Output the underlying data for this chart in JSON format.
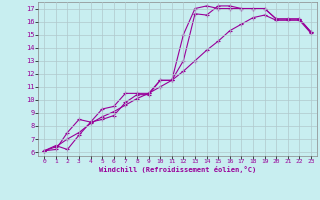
{
  "xlabel": "Windchill (Refroidissement éolien,°C)",
  "bg_color": "#c8eef0",
  "line_color": "#990099",
  "grid_color": "#b0c8cc",
  "xmin": 0,
  "xmax": 23,
  "ymin": 6,
  "ymax": 17,
  "curve1_x": [
    0,
    1,
    2,
    3,
    4,
    5,
    6,
    7,
    8,
    9,
    10,
    11,
    12,
    13,
    14,
    15,
    16,
    17,
    18,
    19,
    20,
    21,
    22,
    23
  ],
  "curve1_y": [
    6.1,
    6.5,
    6.2,
    7.3,
    8.3,
    8.5,
    8.8,
    9.8,
    10.4,
    10.4,
    11.5,
    11.5,
    13.0,
    16.6,
    16.5,
    17.2,
    17.2,
    17.0,
    17.0,
    17.0,
    16.2,
    16.2,
    16.2,
    15.2
  ],
  "curve2_x": [
    0,
    1,
    2,
    3,
    4,
    5,
    6,
    7,
    8,
    9,
    10,
    11,
    12,
    13,
    14,
    15,
    16,
    17,
    18,
    19,
    20,
    21,
    22,
    23
  ],
  "curve2_y": [
    6.1,
    6.2,
    7.5,
    8.5,
    8.3,
    9.3,
    9.5,
    10.5,
    10.5,
    10.5,
    11.5,
    11.5,
    15.0,
    17.0,
    17.2,
    17.0,
    17.0,
    17.0,
    17.0,
    17.0,
    16.2,
    16.2,
    16.2,
    15.2
  ],
  "curve3_x": [
    0,
    1,
    2,
    3,
    4,
    5,
    6,
    7,
    8,
    9,
    10,
    11,
    12,
    13,
    14,
    15,
    16,
    17,
    18,
    19,
    20,
    21,
    22,
    23
  ],
  "curve3_y": [
    6.1,
    6.4,
    7.0,
    7.5,
    8.2,
    8.7,
    9.1,
    9.6,
    10.1,
    10.5,
    11.0,
    11.5,
    12.2,
    13.0,
    13.8,
    14.5,
    15.3,
    15.8,
    16.3,
    16.5,
    16.1,
    16.1,
    16.1,
    15.1
  ],
  "marker": "+",
  "markersize": 3,
  "markeredgewidth": 0.8,
  "linewidth": 0.8
}
